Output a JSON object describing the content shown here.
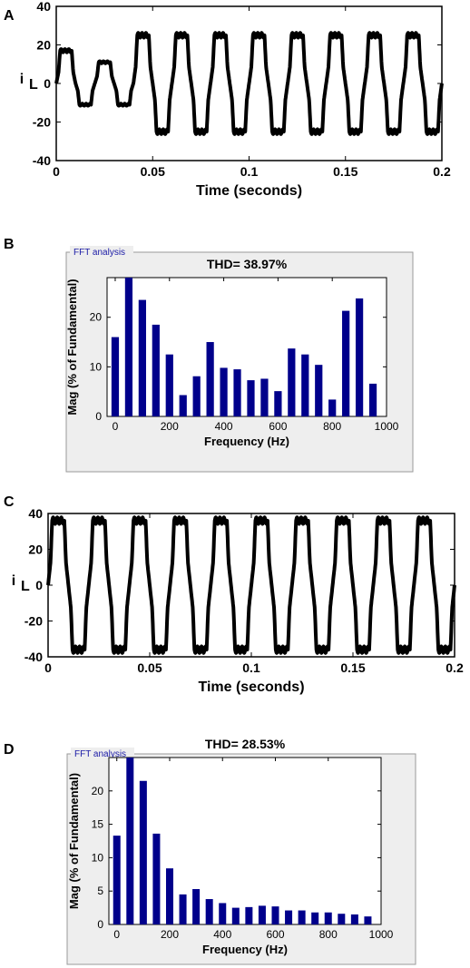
{
  "chart_data": [
    {
      "id": "A",
      "panel_label": "A",
      "type": "line",
      "xlabel": "Time (seconds)",
      "ylabel": "i",
      "ylabel_sub": "L",
      "xlim": [
        0,
        0.2
      ],
      "ylim": [
        -40,
        40
      ],
      "xticks": [
        "0",
        "0.05",
        "0.1",
        "0.15",
        "0.2"
      ],
      "yticks": [
        "40",
        "20",
        "0",
        "-20",
        "-40"
      ],
      "waveform": "transient_then_quasi_square",
      "transient_end": 0.04,
      "amplitude_transient": [
        17,
        11
      ],
      "amplitude_steady": 25,
      "period": 0.02,
      "color": "#000000"
    },
    {
      "id": "B",
      "panel_label": "B",
      "type": "bar",
      "box_title": "FFT analysis",
      "thd": "THD= 38.97%",
      "xlabel": "Frequency (Hz)",
      "ylabel": "Mag (% of Fundamental)",
      "xlim": [
        -30,
        1000
      ],
      "ylim": [
        0,
        28
      ],
      "xticks": [
        "0",
        "200",
        "400",
        "600",
        "800",
        "1000"
      ],
      "yticks": [
        "0",
        "10",
        "20"
      ],
      "x": [
        0,
        50,
        100,
        150,
        200,
        250,
        300,
        350,
        400,
        450,
        500,
        550,
        600,
        650,
        700,
        750,
        800,
        850,
        900,
        950
      ],
      "values": [
        16,
        28,
        23.5,
        18.5,
        12.5,
        4.3,
        8.1,
        15,
        9.8,
        9.5,
        7.3,
        7.6,
        5.1,
        13.7,
        12.5,
        10.4,
        3.4,
        21.3,
        23.8,
        6.6
      ],
      "color": "#00008b"
    },
    {
      "id": "C",
      "panel_label": "C",
      "type": "line",
      "xlabel": "Time (seconds)",
      "ylabel": "i",
      "ylabel_sub": "L",
      "xlim": [
        0,
        0.2
      ],
      "ylim": [
        -40,
        40
      ],
      "xticks": [
        "0",
        "0.05",
        "0.1",
        "0.15",
        "0.2"
      ],
      "yticks": [
        "40",
        "20",
        "0",
        "-20",
        "-40"
      ],
      "waveform": "quasi_square",
      "amplitude_steady": 36,
      "period": 0.02,
      "color": "#000000"
    },
    {
      "id": "D",
      "panel_label": "D",
      "type": "bar",
      "box_title": "FFT analysis",
      "thd": "THD= 28.53%",
      "xlabel": "Frequency (Hz)",
      "ylabel": "Mag (% of Fundamental)",
      "xlim": [
        -30,
        1000
      ],
      "ylim": [
        0,
        25
      ],
      "xticks": [
        "0",
        "200",
        "400",
        "600",
        "800",
        "1000"
      ],
      "yticks": [
        "0",
        "5",
        "10",
        "15",
        "20"
      ],
      "x": [
        0,
        50,
        100,
        150,
        200,
        250,
        300,
        350,
        400,
        450,
        500,
        550,
        600,
        650,
        700,
        750,
        800,
        850,
        900,
        950
      ],
      "values": [
        13.3,
        25,
        21.5,
        13.6,
        8.4,
        4.5,
        5.3,
        3.8,
        3.2,
        2.5,
        2.6,
        2.8,
        2.7,
        2.1,
        2.1,
        1.8,
        1.8,
        1.6,
        1.5,
        1.2
      ],
      "color": "#00008b"
    }
  ]
}
